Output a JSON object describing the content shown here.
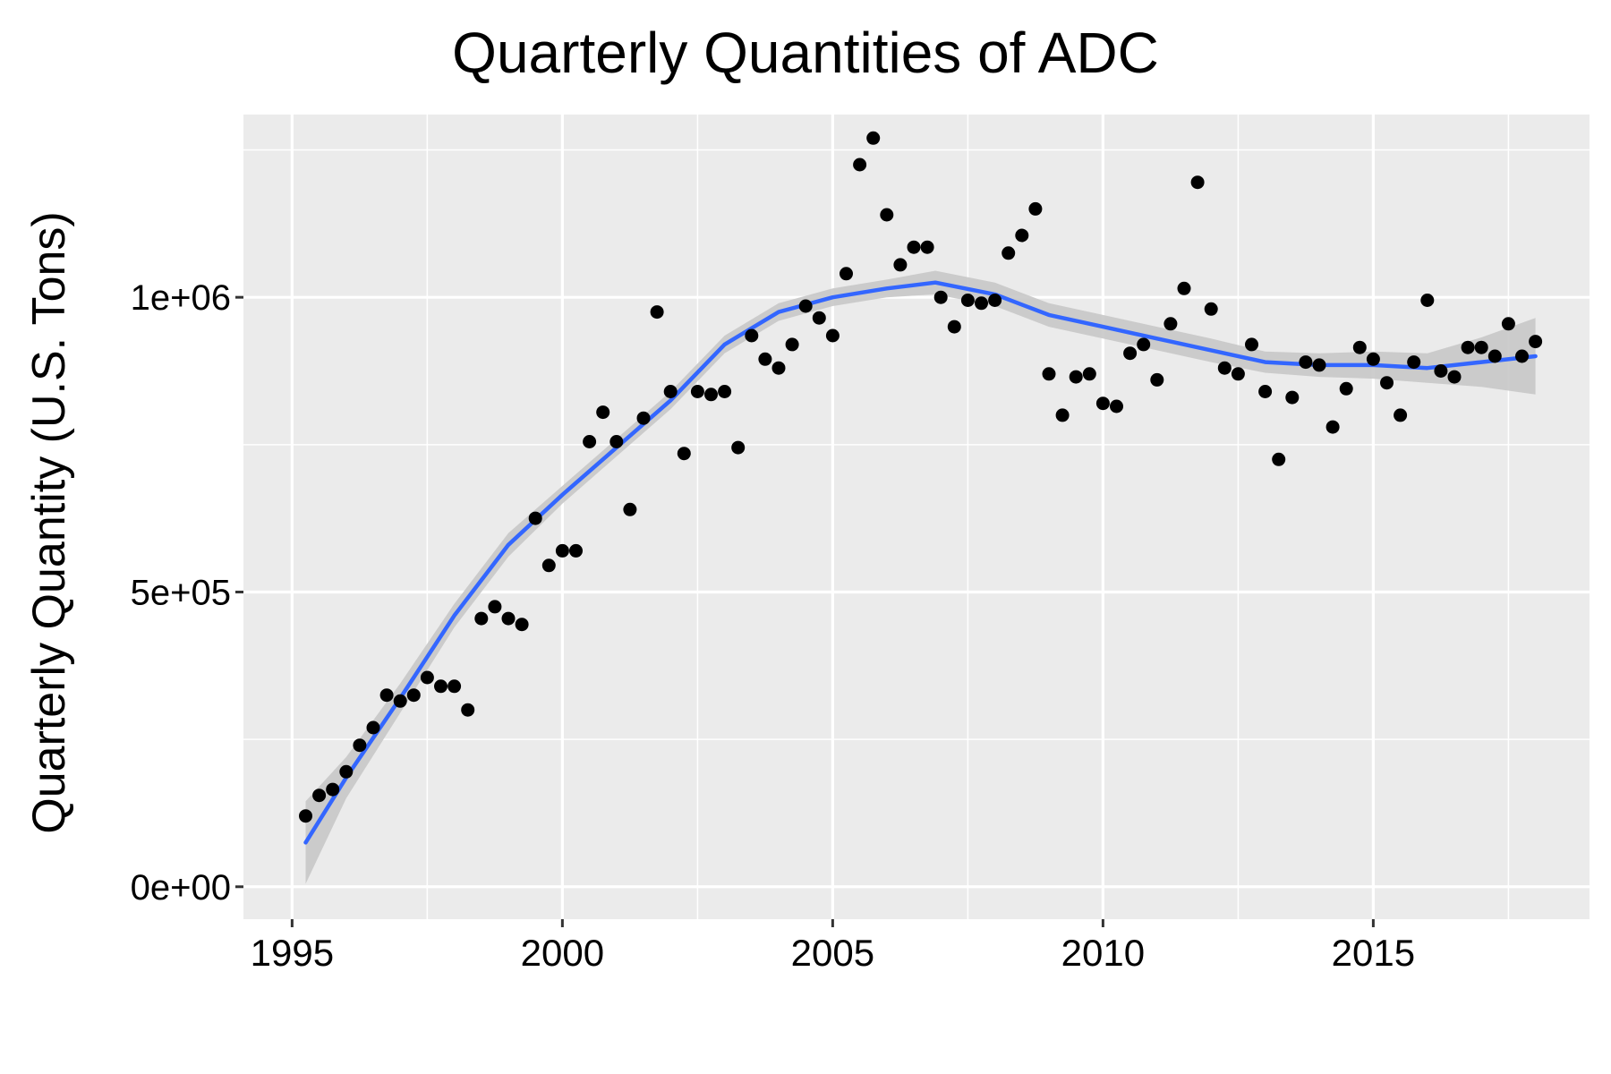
{
  "chart_data": {
    "type": "scatter",
    "title": "Quarterly Quantities of ADC",
    "xlabel": "",
    "ylabel": "Quarterly Quantity (U.S. Tons)",
    "xlim": [
      1994.1,
      2019.0
    ],
    "ylim": [
      -55000,
      1310000
    ],
    "x_ticks": [
      1995,
      2000,
      2005,
      2010,
      2015
    ],
    "x_tick_labels": [
      "1995",
      "2000",
      "2005",
      "2010",
      "2015"
    ],
    "y_ticks": [
      0,
      500000,
      1000000
    ],
    "y_tick_labels": [
      "0e+00",
      "5e+05",
      "1e+06"
    ],
    "grid": true,
    "legend": "none",
    "point_color": "#000000",
    "smooth_color": "#3366FF",
    "ribbon_color": "#c8c8c8",
    "panel_background": "#ebebeb",
    "series": [
      {
        "kind": "points",
        "x": [
          1995.25,
          1995.5,
          1995.75,
          1996.0,
          1996.25,
          1996.5,
          1996.75,
          1997.0,
          1997.25,
          1997.5,
          1997.75,
          1998.0,
          1998.25,
          1998.5,
          1998.75,
          1999.0,
          1999.25,
          1999.5,
          1999.75,
          2000.0,
          2000.25,
          2000.5,
          2000.75,
          2001.0,
          2001.25,
          2001.5,
          2001.75,
          2002.0,
          2002.25,
          2002.5,
          2002.75,
          2003.0,
          2003.25,
          2003.5,
          2003.75,
          2004.0,
          2004.25,
          2004.5,
          2004.75,
          2005.0,
          2005.25,
          2005.5,
          2005.75,
          2006.0,
          2006.25,
          2006.5,
          2006.75,
          2007.0,
          2007.25,
          2007.5,
          2007.75,
          2008.0,
          2008.25,
          2008.5,
          2008.75,
          2009.0,
          2009.25,
          2009.5,
          2009.75,
          2010.0,
          2010.25,
          2010.5,
          2010.75,
          2011.0,
          2011.25,
          2011.5,
          2011.75,
          2012.0,
          2012.25,
          2012.5,
          2012.75,
          2013.0,
          2013.25,
          2013.5,
          2013.75,
          2014.0,
          2014.25,
          2014.5,
          2014.75,
          2015.0,
          2015.25,
          2015.5,
          2015.75,
          2016.0,
          2016.25,
          2016.5,
          2016.75,
          2017.0,
          2017.25,
          2017.5,
          2017.75,
          2018.0
        ],
        "y": [
          120000,
          155000,
          165000,
          195000,
          240000,
          270000,
          325000,
          315000,
          325000,
          355000,
          340000,
          340000,
          300000,
          455000,
          475000,
          455000,
          445000,
          625000,
          545000,
          570000,
          570000,
          755000,
          805000,
          755000,
          640000,
          795000,
          975000,
          840000,
          735000,
          840000,
          835000,
          840000,
          745000,
          935000,
          895000,
          880000,
          920000,
          985000,
          965000,
          935000,
          1040000,
          1225000,
          1270000,
          1140000,
          1055000,
          1085000,
          1085000,
          1000000,
          950000,
          995000,
          990000,
          995000,
          1075000,
          1105000,
          1150000,
          870000,
          800000,
          865000,
          870000,
          820000,
          815000,
          905000,
          920000,
          860000,
          955000,
          1015000,
          1195000,
          980000,
          880000,
          870000,
          920000,
          840000,
          725000,
          830000,
          890000,
          885000,
          780000,
          845000,
          915000,
          895000,
          855000,
          800000,
          890000,
          995000,
          875000,
          865000,
          915000,
          915000,
          900000,
          955000,
          900000,
          925000
        ]
      },
      {
        "kind": "smooth",
        "x": [
          1995.25,
          1996.0,
          1997.0,
          1998.0,
          1999.0,
          2000.0,
          2001.0,
          2002.0,
          2003.0,
          2004.0,
          2005.0,
          2006.0,
          2006.9,
          2008.0,
          2009.0,
          2010.0,
          2011.0,
          2012.0,
          2013.0,
          2014.0,
          2015.0,
          2016.0,
          2017.0,
          2018.0
        ],
        "y": [
          75000,
          185000,
          320000,
          460000,
          580000,
          665000,
          745000,
          825000,
          920000,
          975000,
          1000000,
          1015000,
          1025000,
          1005000,
          970000,
          950000,
          930000,
          910000,
          890000,
          885000,
          885000,
          880000,
          890000,
          900000
        ],
        "lower": [
          5000,
          150000,
          295000,
          440000,
          560000,
          650000,
          730000,
          810000,
          905000,
          960000,
          985000,
          1000000,
          1005000,
          985000,
          950000,
          930000,
          910000,
          890000,
          872000,
          865000,
          862000,
          855000,
          848000,
          835000
        ],
        "upper": [
          145000,
          220000,
          345000,
          480000,
          600000,
          680000,
          760000,
          840000,
          935000,
          990000,
          1015000,
          1030000,
          1045000,
          1025000,
          990000,
          970000,
          950000,
          930000,
          908000,
          905000,
          908000,
          905000,
          932000,
          965000
        ]
      }
    ]
  }
}
